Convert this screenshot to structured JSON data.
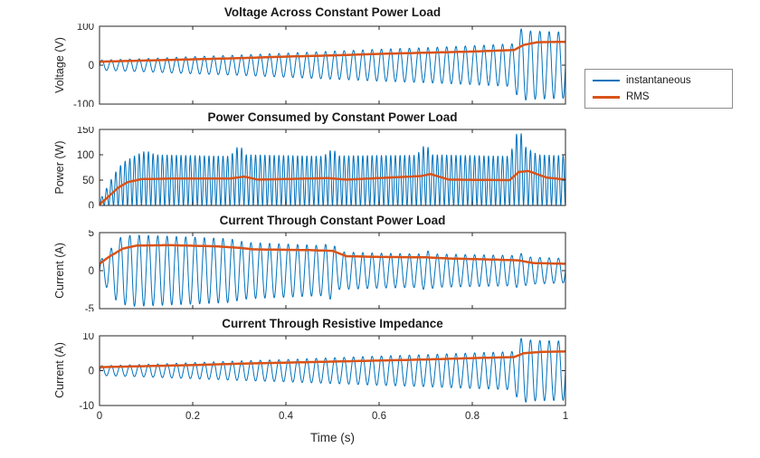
{
  "figure": {
    "background": "#ffffff"
  },
  "xlabel": "Time (s)",
  "axis_color": "#262626",
  "legend": {
    "items": [
      {
        "label": "instantaneous",
        "color": "#0072BD"
      },
      {
        "label": "RMS",
        "color": "#D95319"
      }
    ]
  },
  "chart_data": [
    {
      "type": "line",
      "title": "Voltage Across Constant Power Load",
      "ylabel": "Voltage (V)",
      "xlim": [
        0,
        1
      ],
      "ylim": [
        -100,
        100
      ],
      "yticks": [
        -100,
        0,
        100
      ],
      "xticks": [
        0,
        0.2,
        0.4,
        0.6,
        0.8,
        1
      ],
      "xtick_labels": [
        "0",
        "0.2",
        "0.4",
        "0.6",
        "0.8",
        "1"
      ],
      "show_xtick_labels": false,
      "series": [
        {
          "name": "instantaneous",
          "color": "#0072BD",
          "width": 1,
          "waveform": "sine",
          "frequency": 50,
          "envelope": [
            [
              0,
              13
            ],
            [
              0.05,
              15
            ],
            [
              0.1,
              17
            ],
            [
              0.2,
              22
            ],
            [
              0.3,
              26
            ],
            [
              0.4,
              31
            ],
            [
              0.5,
              36
            ],
            [
              0.6,
              41
            ],
            [
              0.7,
              45
            ],
            [
              0.8,
              50
            ],
            [
              0.85,
              53
            ],
            [
              0.89,
              55
            ],
            [
              0.9,
              95
            ],
            [
              0.92,
              88
            ],
            [
              1,
              85
            ]
          ]
        },
        {
          "name": "RMS",
          "color": "#D95319",
          "width": 2.5,
          "points": [
            [
              0,
              9
            ],
            [
              0.1,
              12
            ],
            [
              0.2,
              15
            ],
            [
              0.3,
              18
            ],
            [
              0.4,
              22
            ],
            [
              0.5,
              25
            ],
            [
              0.6,
              29
            ],
            [
              0.7,
              32
            ],
            [
              0.8,
              35
            ],
            [
              0.89,
              39
            ],
            [
              0.91,
              52
            ],
            [
              0.94,
              59
            ],
            [
              1,
              60
            ]
          ]
        }
      ]
    },
    {
      "type": "line",
      "title": "Power Consumed by Constant Power Load",
      "ylabel": "Power (W)",
      "xlim": [
        0,
        1
      ],
      "ylim": [
        0,
        150
      ],
      "yticks": [
        0,
        50,
        100,
        150
      ],
      "xticks": [
        0,
        0.2,
        0.4,
        0.6,
        0.8,
        1
      ],
      "xtick_labels": [
        "0",
        "0.2",
        "0.4",
        "0.6",
        "0.8",
        "1"
      ],
      "show_xtick_labels": false,
      "series": [
        {
          "name": "instantaneous",
          "color": "#0072BD",
          "width": 1,
          "waveform": "raised_cosine",
          "frequency": 100,
          "envelope": [
            [
              0,
              10
            ],
            [
              0.01,
              25
            ],
            [
              0.03,
              60
            ],
            [
              0.05,
              85
            ],
            [
              0.08,
              100
            ],
            [
              0.1,
              108
            ],
            [
              0.12,
              100
            ],
            [
              0.28,
              97
            ],
            [
              0.3,
              120
            ],
            [
              0.315,
              100
            ],
            [
              0.48,
              97
            ],
            [
              0.5,
              112
            ],
            [
              0.515,
              98
            ],
            [
              0.68,
              99
            ],
            [
              0.7,
              122
            ],
            [
              0.715,
              100
            ],
            [
              0.88,
              97
            ],
            [
              0.9,
              155
            ],
            [
              0.915,
              115
            ],
            [
              0.94,
              100
            ],
            [
              1,
              98
            ]
          ]
        },
        {
          "name": "RMS",
          "color": "#D95319",
          "width": 2.5,
          "points": [
            [
              0,
              2
            ],
            [
              0.02,
              18
            ],
            [
              0.04,
              35
            ],
            [
              0.06,
              46
            ],
            [
              0.09,
              52
            ],
            [
              0.15,
              53
            ],
            [
              0.28,
              53
            ],
            [
              0.31,
              57
            ],
            [
              0.34,
              51
            ],
            [
              0.49,
              54
            ],
            [
              0.53,
              51
            ],
            [
              0.69,
              58
            ],
            [
              0.71,
              62
            ],
            [
              0.75,
              51
            ],
            [
              0.88,
              50
            ],
            [
              0.9,
              66
            ],
            [
              0.92,
              68
            ],
            [
              0.96,
              55
            ],
            [
              1,
              51
            ]
          ]
        }
      ]
    },
    {
      "type": "line",
      "title": "Current Through Constant Power Load",
      "ylabel": "Current (A)",
      "xlim": [
        0,
        1
      ],
      "ylim": [
        -5,
        5
      ],
      "yticks": [
        -5,
        0,
        5
      ],
      "xticks": [
        0,
        0.2,
        0.4,
        0.6,
        0.8,
        1
      ],
      "xtick_labels": [
        "0",
        "0.2",
        "0.4",
        "0.6",
        "0.8",
        "1"
      ],
      "show_xtick_labels": false,
      "series": [
        {
          "name": "instantaneous",
          "color": "#0072BD",
          "width": 1,
          "waveform": "sine",
          "frequency": 50,
          "envelope": [
            [
              0,
              1.3
            ],
            [
              0.02,
              2.5
            ],
            [
              0.04,
              4.3
            ],
            [
              0.07,
              4.7
            ],
            [
              0.12,
              4.6
            ],
            [
              0.2,
              4.4
            ],
            [
              0.28,
              4.2
            ],
            [
              0.3,
              3.9
            ],
            [
              0.32,
              3.7
            ],
            [
              0.4,
              3.5
            ],
            [
              0.48,
              3.3
            ],
            [
              0.5,
              3.9
            ],
            [
              0.51,
              2.5
            ],
            [
              0.6,
              2.3
            ],
            [
              0.69,
              2.2
            ],
            [
              0.7,
              2.7
            ],
            [
              0.72,
              2.2
            ],
            [
              0.8,
              2.1
            ],
            [
              0.89,
              2.0
            ],
            [
              0.9,
              2.4
            ],
            [
              0.92,
              1.8
            ],
            [
              1,
              1.6
            ]
          ]
        },
        {
          "name": "RMS",
          "color": "#D95319",
          "width": 2.5,
          "points": [
            [
              0,
              0.9
            ],
            [
              0.02,
              1.8
            ],
            [
              0.05,
              2.9
            ],
            [
              0.08,
              3.3
            ],
            [
              0.15,
              3.35
            ],
            [
              0.25,
              3.2
            ],
            [
              0.3,
              3.0
            ],
            [
              0.33,
              2.8
            ],
            [
              0.45,
              2.7
            ],
            [
              0.5,
              2.6
            ],
            [
              0.53,
              1.9
            ],
            [
              0.6,
              1.8
            ],
            [
              0.7,
              1.75
            ],
            [
              0.75,
              1.6
            ],
            [
              0.85,
              1.45
            ],
            [
              0.9,
              1.35
            ],
            [
              0.93,
              1.0
            ],
            [
              1,
              0.9
            ]
          ]
        }
      ]
    },
    {
      "type": "line",
      "title": "Current Through Resistive Impedance",
      "ylabel": "Current (A)",
      "xlim": [
        0,
        1
      ],
      "ylim": [
        -10,
        10
      ],
      "yticks": [
        -10,
        0,
        10
      ],
      "xticks": [
        0,
        0.2,
        0.4,
        0.6,
        0.8,
        1
      ],
      "xtick_labels": [
        "0",
        "0.2",
        "0.4",
        "0.6",
        "0.8",
        "1"
      ],
      "show_xtick_labels": true,
      "series": [
        {
          "name": "instantaneous",
          "color": "#0072BD",
          "width": 1,
          "waveform": "sine",
          "frequency": 50,
          "envelope": [
            [
              0,
              1.4
            ],
            [
              0.1,
              1.8
            ],
            [
              0.2,
              2.3
            ],
            [
              0.3,
              2.8
            ],
            [
              0.4,
              3.2
            ],
            [
              0.5,
              3.7
            ],
            [
              0.6,
              4.2
            ],
            [
              0.7,
              4.6
            ],
            [
              0.8,
              5.1
            ],
            [
              0.89,
              5.5
            ],
            [
              0.9,
              9.4
            ],
            [
              0.93,
              8.7
            ],
            [
              1,
              8.5
            ]
          ]
        },
        {
          "name": "RMS",
          "color": "#D95319",
          "width": 2.5,
          "points": [
            [
              0,
              1.0
            ],
            [
              0.1,
              1.3
            ],
            [
              0.2,
              1.6
            ],
            [
              0.3,
              2.0
            ],
            [
              0.4,
              2.3
            ],
            [
              0.5,
              2.6
            ],
            [
              0.6,
              2.9
            ],
            [
              0.7,
              3.2
            ],
            [
              0.8,
              3.6
            ],
            [
              0.89,
              3.9
            ],
            [
              0.91,
              5.0
            ],
            [
              0.95,
              5.4
            ],
            [
              1,
              5.5
            ]
          ]
        }
      ]
    }
  ]
}
